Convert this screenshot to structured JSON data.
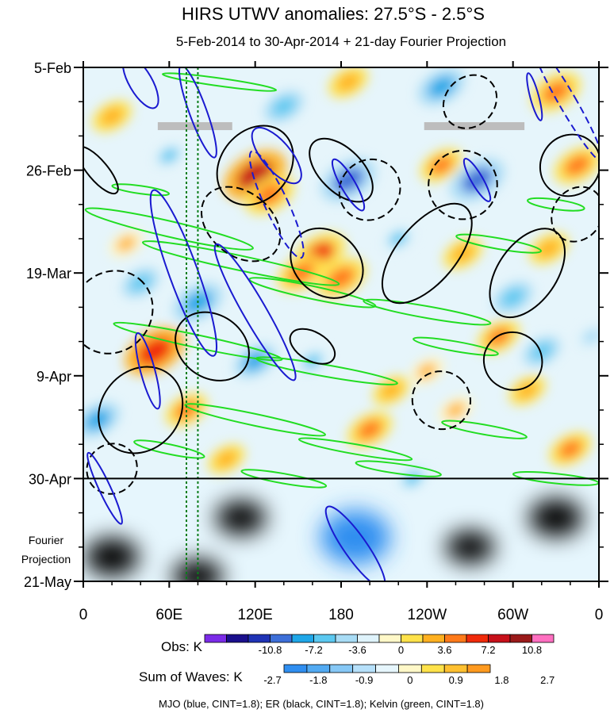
{
  "title": "HIRS UTWV anomalies: 27.5°S - 2.5°S",
  "subtitle": "5-Feb-2014 to 30-Apr-2014 + 21-day Fourier Projection",
  "chart_data": {
    "type": "heatmap",
    "x_ticks": [
      "0",
      "60E",
      "120E",
      "180",
      "120W",
      "60W",
      "0"
    ],
    "x_tick_lon": [
      0,
      60,
      120,
      180,
      240,
      300,
      360
    ],
    "y_ticks": [
      "5-Feb",
      "26-Feb",
      "19-Mar",
      "9-Apr",
      "30-Apr",
      "21-May"
    ],
    "y_tick_day": [
      0,
      21,
      42,
      63,
      84,
      105
    ],
    "y_extra_label": "Fourier\nProjection",
    "observation_end_day": 84,
    "ylim_days": [
      0,
      105
    ],
    "xlim_lon": [
      0,
      360
    ],
    "obs_colorbar": {
      "label": "Obs: K",
      "tick_labels": [
        "-10.8",
        "-7.2",
        "-3.6",
        "0",
        "3.6",
        "7.2",
        "10.8"
      ],
      "colors": [
        "#7b2be8",
        "#1a0f8c",
        "#1f33b5",
        "#3d6fd8",
        "#1fa7e8",
        "#5bc8f0",
        "#a8dcf5",
        "#dff3fb",
        "#fff8c8",
        "#ffe24a",
        "#ffb020",
        "#ff7a1a",
        "#f02a0a",
        "#c7101a",
        "#9a1a1a",
        "#ff6fc0"
      ]
    },
    "waves_colorbar": {
      "label": "Sum of Waves: K",
      "tick_labels": [
        "-2.7",
        "-1.8",
        "-0.9",
        "0",
        "0.9",
        "1.8",
        "2.7"
      ],
      "colors": [
        "#2f8ef0",
        "#52aaf2",
        "#86c8f6",
        "#b6e0fa",
        "#e6f6fd",
        "#fff8c8",
        "#ffe24a",
        "#ffc030",
        "#ff9a1f"
      ]
    },
    "contours_legend": "MJO (blue, CINT=1.8); ER (black, CINT=1.8); Kelvin (green, CINT=1.8)",
    "series_colors": {
      "MJO": "#1a1ad0",
      "ER": "#000000",
      "Kelvin": "#22dd22"
    },
    "missing_data_bars": [
      {
        "lon_start": 52,
        "lon_end": 104,
        "day": 12
      },
      {
        "lon_start": 238,
        "lon_end": 308,
        "day": 12
      }
    ],
    "reference_lines_lon": [
      72,
      80
    ],
    "obs_anomaly_centers": [
      {
        "lon": 120,
        "day": 22,
        "value": 9.5
      },
      {
        "lon": 130,
        "day": 26,
        "value": 7.0
      },
      {
        "lon": 165,
        "day": 38,
        "value": 7.5
      },
      {
        "lon": 152,
        "day": 42,
        "value": 6.5
      },
      {
        "lon": 180,
        "day": 43,
        "value": 7.0
      },
      {
        "lon": 50,
        "day": 58,
        "value": 9.0
      },
      {
        "lon": 72,
        "day": 70,
        "value": 5.5
      },
      {
        "lon": 200,
        "day": 74,
        "value": 6.0
      },
      {
        "lon": 215,
        "day": 66,
        "value": 4.5
      },
      {
        "lon": 265,
        "day": 38,
        "value": 5.0
      },
      {
        "lon": 290,
        "day": 55,
        "value": 5.5
      },
      {
        "lon": 325,
        "day": 37,
        "value": 5.0
      },
      {
        "lon": 345,
        "day": 20,
        "value": 6.5
      },
      {
        "lon": 330,
        "day": 5,
        "value": 7.0
      },
      {
        "lon": 20,
        "day": 10,
        "value": 5.0
      },
      {
        "lon": 250,
        "day": 20,
        "value": 5.5
      },
      {
        "lon": 100,
        "day": 80,
        "value": 4.5
      },
      {
        "lon": 340,
        "day": 78,
        "value": 5.5
      },
      {
        "lon": 260,
        "day": 70,
        "value": 4.0
      },
      {
        "lon": 30,
        "day": 36,
        "value": 4.0
      },
      {
        "lon": 185,
        "day": 3,
        "value": 5.0
      },
      {
        "lon": 240,
        "day": 62,
        "value": 4.0
      },
      {
        "lon": 310,
        "day": 66,
        "value": 4.5
      },
      {
        "lon": 80,
        "day": 48,
        "value": -7.0
      },
      {
        "lon": 185,
        "day": 23,
        "value": -8.0
      },
      {
        "lon": 275,
        "day": 23,
        "value": -8.0
      },
      {
        "lon": 250,
        "day": 4,
        "value": -6.5
      },
      {
        "lon": 10,
        "day": 72,
        "value": -6.0
      },
      {
        "lon": 120,
        "day": 60,
        "value": -5.5
      },
      {
        "lon": 140,
        "day": 8,
        "value": -5.0
      },
      {
        "lon": 300,
        "day": 47,
        "value": -5.0
      },
      {
        "lon": 40,
        "day": 44,
        "value": -4.5
      },
      {
        "lon": 220,
        "day": 35,
        "value": -4.0
      },
      {
        "lon": 60,
        "day": 18,
        "value": -4.0
      },
      {
        "lon": 230,
        "day": 84,
        "value": -4.0
      },
      {
        "lon": 160,
        "day": 60,
        "value": -4.0
      },
      {
        "lon": 320,
        "day": 58,
        "value": -4.5
      },
      {
        "lon": 355,
        "day": 55,
        "value": -3.5
      }
    ],
    "projection_centers": [
      {
        "lon": 190,
        "day": 96,
        "value": -2.5
      },
      {
        "lon": 20,
        "day": 100,
        "value": 1.2
      },
      {
        "lon": 110,
        "day": 92,
        "value": 0.9
      },
      {
        "lon": 330,
        "day": 92,
        "value": -1.2
      },
      {
        "lon": 270,
        "day": 98,
        "value": 0.8
      },
      {
        "lon": 80,
        "day": 104,
        "value": -0.9
      }
    ],
    "mjo_contours": [
      {
        "lon": 40,
        "day": 3,
        "dlon": 8,
        "dday": 6,
        "angle": -30,
        "dashed": false
      },
      {
        "lon": 80,
        "day": 9,
        "dlon": 6,
        "dday": 10,
        "angle": -20,
        "dashed": false
      },
      {
        "lon": 135,
        "day": 18,
        "dlon": 10,
        "dday": 7,
        "angle": -40,
        "dashed": false
      },
      {
        "lon": 135,
        "day": 28,
        "dlon": 8,
        "dday": 12,
        "angle": -25,
        "dashed": true
      },
      {
        "lon": 70,
        "day": 42,
        "dlon": 10,
        "dday": 18,
        "angle": -20,
        "dashed": false
      },
      {
        "lon": 120,
        "day": 50,
        "dlon": 8,
        "dday": 16,
        "angle": -30,
        "dashed": false
      },
      {
        "lon": 45,
        "day": 62,
        "dlon": 5,
        "dday": 8,
        "angle": -15,
        "dashed": false
      },
      {
        "lon": 190,
        "day": 98,
        "dlon": 8,
        "dday": 10,
        "angle": -35,
        "dashed": false
      },
      {
        "lon": 185,
        "day": 24,
        "dlon": 5,
        "dday": 6,
        "angle": -30,
        "dashed": false
      },
      {
        "lon": 275,
        "day": 23,
        "dlon": 4,
        "dday": 5,
        "angle": -30,
        "dashed": false
      },
      {
        "lon": 338,
        "day": 7,
        "dlon": 6,
        "dday": 14,
        "angle": -30,
        "dashed": true
      },
      {
        "lon": 15,
        "day": 86,
        "dlon": 4,
        "dday": 8,
        "angle": -25,
        "dashed": false
      },
      {
        "lon": 315,
        "day": 6,
        "dlon": 3,
        "dday": 5,
        "angle": -15,
        "dashed": false
      }
    ],
    "er_contours": [
      {
        "lon": 10,
        "day": 21,
        "dlon": 7,
        "dday": 6,
        "angle": -40,
        "dashed": false
      },
      {
        "lon": 110,
        "day": 32,
        "dlon": 22,
        "dday": 9,
        "angle": -50,
        "dashed": true
      },
      {
        "lon": 120,
        "day": 20,
        "dlon": 30,
        "dday": 7,
        "angle": -50,
        "dashed": false
      },
      {
        "lon": 170,
        "day": 40,
        "dlon": 22,
        "dday": 8,
        "angle": -50,
        "dashed": false
      },
      {
        "lon": 200,
        "day": 25,
        "dlon": 22,
        "dday": 6,
        "angle": -45,
        "dashed": true
      },
      {
        "lon": 180,
        "day": 21,
        "dlon": 15,
        "dday": 8,
        "angle": -45,
        "dashed": false
      },
      {
        "lon": 240,
        "day": 38,
        "dlon": 42,
        "dday": 6,
        "angle": -50,
        "dashed": false
      },
      {
        "lon": 265,
        "day": 24,
        "dlon": 24,
        "dday": 7,
        "angle": -45,
        "dashed": true
      },
      {
        "lon": 270,
        "day": 7,
        "dlon": 20,
        "dday": 5,
        "angle": -45,
        "dashed": true
      },
      {
        "lon": 310,
        "day": 42,
        "dlon": 35,
        "dday": 6,
        "angle": -55,
        "dashed": false
      },
      {
        "lon": 20,
        "day": 50,
        "dlon": 30,
        "dday": 8,
        "angle": -50,
        "dashed": true
      },
      {
        "lon": 90,
        "day": 57,
        "dlon": 22,
        "dday": 8,
        "angle": -55,
        "dashed": false
      },
      {
        "lon": 40,
        "day": 70,
        "dlon": 32,
        "dday": 8,
        "angle": -50,
        "dashed": false
      },
      {
        "lon": 250,
        "day": 68,
        "dlon": 20,
        "dday": 6,
        "angle": -50,
        "dashed": true
      },
      {
        "lon": 300,
        "day": 60,
        "dlon": 20,
        "dday": 6,
        "angle": -55,
        "dashed": false
      },
      {
        "lon": 340,
        "day": 20,
        "dlon": 22,
        "dday": 6,
        "angle": -55,
        "dashed": false
      },
      {
        "lon": 345,
        "day": 30,
        "dlon": 20,
        "dday": 5,
        "angle": -55,
        "dashed": true
      },
      {
        "lon": 20,
        "day": 82,
        "dlon": 18,
        "dday": 5,
        "angle": -45,
        "dashed": true
      },
      {
        "lon": 160,
        "day": 57,
        "dlon": 10,
        "dday": 5,
        "angle": -60,
        "dashed": false
      }
    ],
    "kelvin_contours": [
      {
        "lon": 60,
        "day": 33,
        "dlon": 60,
        "dday": 1.6,
        "angle": 13
      },
      {
        "lon": 110,
        "day": 40,
        "dlon": 70,
        "dday": 1.5,
        "angle": 12
      },
      {
        "lon": 160,
        "day": 46,
        "dlon": 45,
        "dday": 1.3,
        "angle": 12
      },
      {
        "lon": 240,
        "day": 50,
        "dlon": 45,
        "dday": 1.2,
        "angle": 10
      },
      {
        "lon": 290,
        "day": 36,
        "dlon": 30,
        "dday": 1.1,
        "angle": 10
      },
      {
        "lon": 330,
        "day": 28,
        "dlon": 20,
        "dday": 1.0,
        "angle": 8
      },
      {
        "lon": 80,
        "day": 56,
        "dlon": 60,
        "dday": 1.3,
        "angle": 12
      },
      {
        "lon": 170,
        "day": 62,
        "dlon": 50,
        "dday": 1.2,
        "angle": 10
      },
      {
        "lon": 260,
        "day": 57,
        "dlon": 30,
        "dday": 1.0,
        "angle": 10
      },
      {
        "lon": 120,
        "day": 72,
        "dlon": 50,
        "dday": 1.2,
        "angle": 12
      },
      {
        "lon": 190,
        "day": 78,
        "dlon": 40,
        "dday": 1.0,
        "angle": 10
      },
      {
        "lon": 280,
        "day": 74,
        "dlon": 30,
        "dday": 1.0,
        "angle": 10
      },
      {
        "lon": 60,
        "day": 78,
        "dlon": 25,
        "dday": 1.0,
        "angle": 12
      },
      {
        "lon": 220,
        "day": 82,
        "dlon": 30,
        "dday": 1.0,
        "angle": 8
      },
      {
        "lon": 140,
        "day": 84,
        "dlon": 30,
        "dday": 1.0,
        "angle": 10
      },
      {
        "lon": 330,
        "day": 84,
        "dlon": 30,
        "dday": 1.0,
        "angle": 6
      },
      {
        "lon": 95,
        "day": 3,
        "dlon": 40,
        "dday": 0.8,
        "angle": 8
      },
      {
        "lon": 40,
        "day": 25,
        "dlon": 20,
        "dday": 0.8,
        "angle": 8
      }
    ]
  }
}
